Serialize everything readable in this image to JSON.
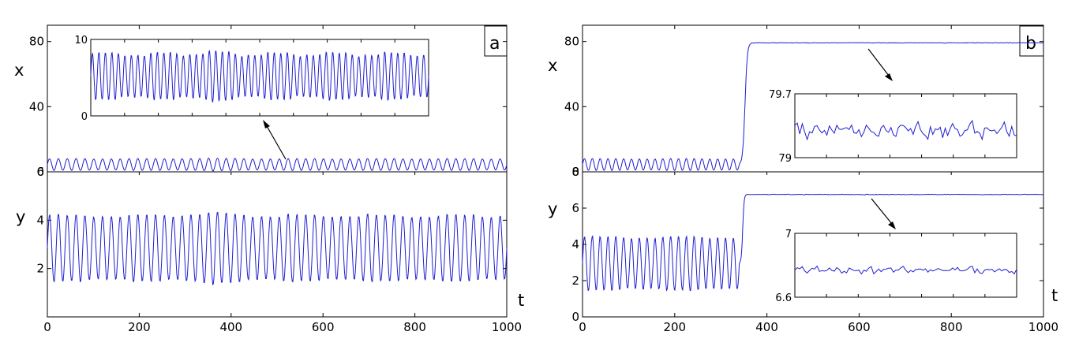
{
  "chart_data": [
    {
      "panel": "a",
      "type": "line",
      "xlabel": "t",
      "xlim": [
        0,
        1000
      ],
      "xticks": [
        "0",
        "200",
        "400",
        "600",
        "800",
        "1000"
      ],
      "subplots": [
        {
          "ylabel": "x",
          "ylim": [
            0,
            90
          ],
          "yticks": [
            "0",
            "40",
            "80"
          ],
          "series": [
            {
              "x_range": [
                0,
                1000
              ],
              "periods": 52,
              "min": 1,
              "max": 8,
              "amp_bump_at": 350
            }
          ],
          "inset": {
            "yticks": [
              "0",
              "10"
            ],
            "ylim": [
              0,
              10
            ],
            "xlim": [
              0,
              1000
            ],
            "series": [
              {
                "periods": 52,
                "min": 2.3,
                "max": 8.1
              }
            ]
          }
        },
        {
          "ylabel": "y",
          "ylim": [
            0,
            6
          ],
          "yticks": [
            "2",
            "4",
            "6"
          ],
          "series": [
            {
              "x_range": [
                0,
                1000
              ],
              "periods": 52,
              "min": 1.5,
              "max": 4.2,
              "amp_bump_at": 350
            }
          ]
        }
      ]
    },
    {
      "panel": "b",
      "type": "line",
      "xlabel": "t",
      "xlim": [
        0,
        1000
      ],
      "xticks": [
        "0",
        "200",
        "400",
        "600",
        "800",
        "1000"
      ],
      "subplots": [
        {
          "ylabel": "x",
          "ylim": [
            0,
            90
          ],
          "yticks": [
            "0",
            "40",
            "80"
          ],
          "series": [
            {
              "osc_until": 340,
              "periods": 20,
              "min": 1,
              "max": 8,
              "jump_end": 365,
              "plateau": 79.2
            }
          ],
          "inset": {
            "yticks": [
              "79",
              "79.7"
            ],
            "ylim": [
              79,
              79.7
            ],
            "series": [
              {
                "mean": 79.3,
                "noise": 0.08
              }
            ]
          }
        },
        {
          "ylabel": "y",
          "ylim": [
            0,
            8
          ],
          "yticks": [
            "0",
            "2",
            "4",
            "6",
            "8"
          ],
          "series": [
            {
              "osc_until": 340,
              "periods": 20,
              "min": 1.5,
              "max": 4.4,
              "jump_end": 355,
              "plateau": 6.75
            }
          ],
          "inset": {
            "yticks": [
              "6.6",
              "7"
            ],
            "ylim": [
              6.6,
              7
            ],
            "series": [
              {
                "mean": 6.77,
                "noise": 0.02
              }
            ]
          }
        }
      ]
    }
  ]
}
